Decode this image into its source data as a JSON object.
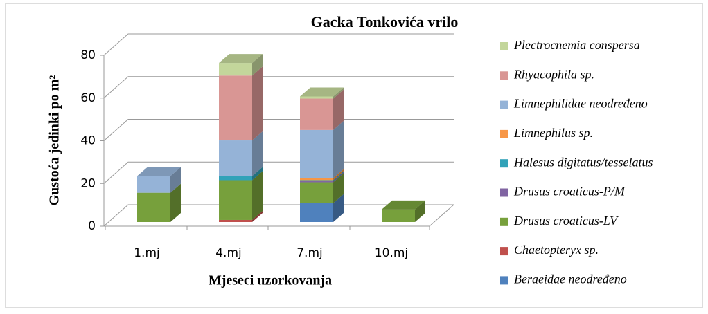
{
  "chart_data": {
    "type": "bar3d_stacked",
    "title": "Gacka Tonkovića vrilo",
    "x_label": "Mjeseci uzorkovanja",
    "y_label": "Gustoća jedinki po m²",
    "categories": [
      "1.mj",
      "4.mj",
      "7.mj",
      "10.mj"
    ],
    "ylim": [
      0,
      80
    ],
    "yticks": [
      0,
      20,
      40,
      60,
      80
    ],
    "grid": true,
    "legend": "right",
    "series": [
      {
        "name": "Plectrocnemia conspersa",
        "color": "#c3d69b",
        "values": [
          0,
          6,
          1,
          0
        ]
      },
      {
        "name": "Rhyacophila sp.",
        "color": "#d99694",
        "values": [
          0,
          31,
          15,
          0
        ]
      },
      {
        "name": "Limnephilidae neodređeno",
        "color": "#95b3d7",
        "values": [
          8,
          17,
          23,
          0
        ]
      },
      {
        "name": "Limnephilus sp.",
        "color": "#f79646",
        "values": [
          0,
          0,
          1,
          0
        ]
      },
      {
        "name": "Halesus digitatus/tesselatus",
        "color": "#31a2b8",
        "values": [
          0,
          2,
          0.5,
          0
        ]
      },
      {
        "name": "Drusus croaticus-P/M",
        "color": "#8064a2",
        "values": [
          0,
          0,
          0.5,
          0
        ]
      },
      {
        "name": "Drusus croaticus-LV",
        "color": "#77a03c",
        "values": [
          14,
          19,
          10,
          6
        ]
      },
      {
        "name": "Chaetopteryx sp.",
        "color": "#c0504d",
        "values": [
          0,
          1,
          0,
          0
        ]
      },
      {
        "name": "Beraeidae neodređeno",
        "color": "#4f81bd",
        "values": [
          0,
          0,
          9,
          0
        ]
      }
    ]
  }
}
